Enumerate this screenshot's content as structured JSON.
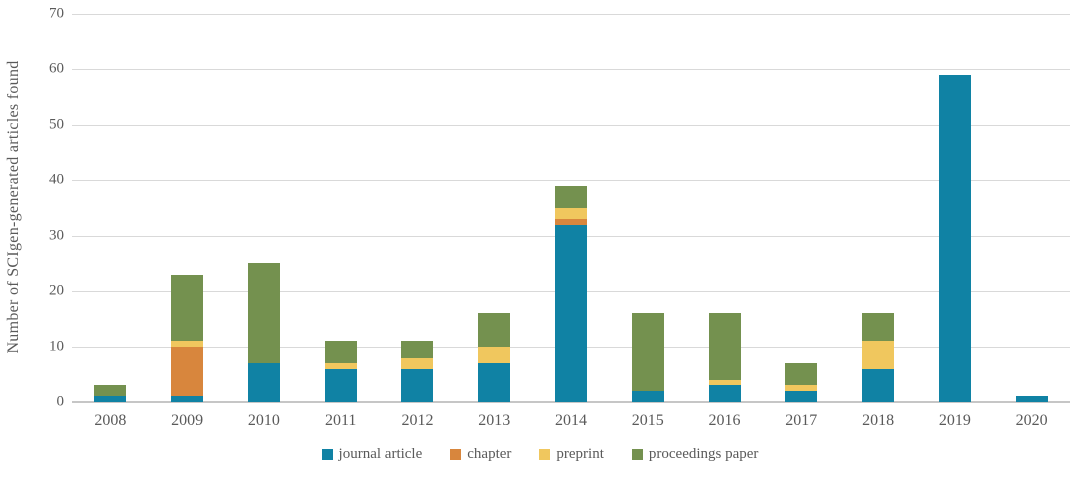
{
  "chart_data": {
    "type": "bar",
    "stacked": true,
    "title": "",
    "xlabel": "",
    "ylabel": "Number of  SCIgen-generated articles found",
    "categories": [
      "2008",
      "2009",
      "2010",
      "2011",
      "2012",
      "2013",
      "2014",
      "2015",
      "2016",
      "2017",
      "2018",
      "2019",
      "2020"
    ],
    "series": [
      {
        "name": "journal article",
        "color": "#1082a4",
        "values": [
          1,
          1,
          7,
          6,
          6,
          7,
          32,
          2,
          3,
          2,
          6,
          59,
          1
        ]
      },
      {
        "name": "chapter",
        "color": "#d8863d",
        "values": [
          0,
          9,
          0,
          0,
          0,
          0,
          1,
          0,
          0,
          0,
          0,
          0,
          0
        ]
      },
      {
        "name": "preprint",
        "color": "#f0c75e",
        "values": [
          0,
          1,
          0,
          1,
          2,
          3,
          2,
          0,
          1,
          1,
          5,
          0,
          0
        ]
      },
      {
        "name": "proceedings paper",
        "color": "#74914f",
        "values": [
          2,
          12,
          18,
          4,
          3,
          6,
          4,
          14,
          12,
          4,
          5,
          0,
          0
        ]
      }
    ],
    "totals": [
      3,
      23,
      25,
      11,
      11,
      16,
      39,
      16,
      16,
      7,
      16,
      59,
      1
    ],
    "ylim": [
      0,
      70
    ],
    "yticks": [
      "0",
      "10",
      "20",
      "30",
      "40",
      "50",
      "60",
      "70"
    ],
    "grid": true,
    "legend_position": "bottom"
  },
  "style": {
    "gridline_color": "#d9d9d9",
    "baseline_color": "#c6c6c6",
    "text_color": "#5a5a5a",
    "background": "#ffffff"
  }
}
